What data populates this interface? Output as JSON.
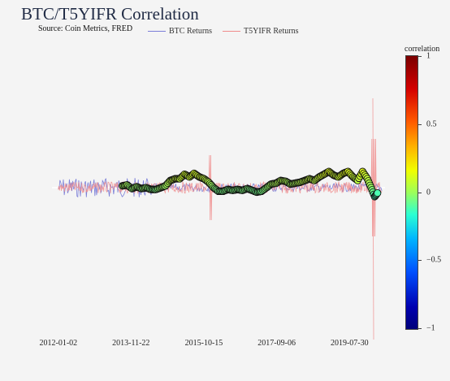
{
  "title": "BTC/T5YIFR Correlation",
  "subtitle": "Source: Coin Metrics, FRED",
  "legend": [
    {
      "label": "BTC Returns",
      "color": "#7b7fd8"
    },
    {
      "label": "T5YIFR Returns",
      "color": "#f08c8c"
    }
  ],
  "colorbar": {
    "title": "correlation",
    "ticks": [
      "1",
      "0.5",
      "0",
      "−0.5",
      "−1"
    ],
    "tick_values": [
      1,
      0.5,
      0,
      -0.5,
      -1
    ],
    "colorscale": "Jet"
  },
  "chart_data": {
    "type": "scatter",
    "x_tick_labels": [
      "2012-01-02",
      "2013-11-22",
      "2015-10-15",
      "2017-09-06",
      "2019-07-30"
    ],
    "x_range": [
      "2011-06-01",
      "2020-08-01"
    ],
    "series": [
      {
        "name": "BTC Returns",
        "color": "#7b7fd8",
        "type": "line",
        "description_range": [
          -0.25,
          0.25
        ]
      },
      {
        "name": "T5YIFR Returns",
        "color": "#f08c8c",
        "type": "line",
        "extremes": {
          "date": "2020-03-15",
          "max": 1.0,
          "min": -1.7
        }
      }
    ],
    "correlation_points": [
      {
        "x": "2013-09-01",
        "y": 0.02,
        "c": 0.05
      },
      {
        "x": "2013-10-15",
        "y": 0.03,
        "c": 0.08
      },
      {
        "x": "2013-12-01",
        "y": -0.01,
        "c": 0.02
      },
      {
        "x": "2014-01-15",
        "y": 0.01,
        "c": 0.05
      },
      {
        "x": "2014-03-01",
        "y": -0.01,
        "c": 0.02
      },
      {
        "x": "2014-04-15",
        "y": 0.0,
        "c": 0.04
      },
      {
        "x": "2014-06-01",
        "y": -0.02,
        "c": 0.0
      },
      {
        "x": "2014-07-15",
        "y": -0.02,
        "c": -0.01
      },
      {
        "x": "2014-09-01",
        "y": 0.0,
        "c": 0.05
      },
      {
        "x": "2014-10-15",
        "y": 0.02,
        "c": 0.06
      },
      {
        "x": "2014-12-01",
        "y": 0.08,
        "c": 0.12
      },
      {
        "x": "2015-01-15",
        "y": 0.1,
        "c": 0.15
      },
      {
        "x": "2015-03-01",
        "y": 0.1,
        "c": 0.14
      },
      {
        "x": "2015-04-15",
        "y": 0.15,
        "c": 0.17
      },
      {
        "x": "2015-06-01",
        "y": 0.12,
        "c": 0.15
      },
      {
        "x": "2015-07-15",
        "y": 0.16,
        "c": 0.18
      },
      {
        "x": "2015-09-01",
        "y": 0.12,
        "c": 0.16
      },
      {
        "x": "2015-10-15",
        "y": 0.1,
        "c": 0.14
      },
      {
        "x": "2015-12-01",
        "y": 0.06,
        "c": 0.11
      },
      {
        "x": "2016-01-15",
        "y": 0.0,
        "c": 0.04
      },
      {
        "x": "2016-03-01",
        "y": -0.04,
        "c": -0.02
      },
      {
        "x": "2016-04-15",
        "y": -0.04,
        "c": -0.02
      },
      {
        "x": "2016-06-01",
        "y": -0.02,
        "c": 0.0
      },
      {
        "x": "2016-07-15",
        "y": -0.03,
        "c": -0.01
      },
      {
        "x": "2016-09-01",
        "y": -0.02,
        "c": 0.0
      },
      {
        "x": "2016-10-15",
        "y": -0.03,
        "c": -0.01
      },
      {
        "x": "2016-12-01",
        "y": -0.01,
        "c": 0.01
      },
      {
        "x": "2017-01-15",
        "y": -0.03,
        "c": -0.02
      },
      {
        "x": "2017-03-01",
        "y": -0.05,
        "c": -0.03
      },
      {
        "x": "2017-04-15",
        "y": -0.04,
        "c": -0.02
      },
      {
        "x": "2017-06-01",
        "y": 0.0,
        "c": 0.02
      },
      {
        "x": "2017-07-15",
        "y": 0.04,
        "c": 0.07
      },
      {
        "x": "2017-09-01",
        "y": 0.05,
        "c": 0.09
      },
      {
        "x": "2017-10-15",
        "y": 0.08,
        "c": 0.1
      },
      {
        "x": "2017-12-01",
        "y": 0.07,
        "c": 0.1
      },
      {
        "x": "2018-01-15",
        "y": 0.04,
        "c": 0.07
      },
      {
        "x": "2018-03-01",
        "y": 0.05,
        "c": 0.08
      },
      {
        "x": "2018-04-15",
        "y": 0.06,
        "c": 0.1
      },
      {
        "x": "2018-06-01",
        "y": 0.08,
        "c": 0.12
      },
      {
        "x": "2018-07-15",
        "y": 0.1,
        "c": 0.14
      },
      {
        "x": "2018-09-01",
        "y": 0.08,
        "c": 0.11
      },
      {
        "x": "2018-10-15",
        "y": 0.12,
        "c": 0.15
      },
      {
        "x": "2018-12-01",
        "y": 0.15,
        "c": 0.18
      },
      {
        "x": "2019-01-15",
        "y": 0.18,
        "c": 0.2
      },
      {
        "x": "2019-03-01",
        "y": 0.14,
        "c": 0.17
      },
      {
        "x": "2019-04-15",
        "y": 0.12,
        "c": 0.15
      },
      {
        "x": "2019-06-01",
        "y": 0.16,
        "c": 0.19
      },
      {
        "x": "2019-07-15",
        "y": 0.18,
        "c": 0.2
      },
      {
        "x": "2019-09-01",
        "y": 0.12,
        "c": 0.16
      },
      {
        "x": "2019-10-15",
        "y": 0.08,
        "c": 0.12
      },
      {
        "x": "2019-12-01",
        "y": 0.18,
        "c": 0.2
      },
      {
        "x": "2020-01-15",
        "y": 0.1,
        "c": 0.14
      },
      {
        "x": "2020-02-20",
        "y": 0.0,
        "c": 0.06
      },
      {
        "x": "2020-03-25",
        "y": -0.1,
        "c": -0.12
      },
      {
        "x": "2020-04-20",
        "y": -0.06,
        "c": -0.1
      }
    ]
  }
}
